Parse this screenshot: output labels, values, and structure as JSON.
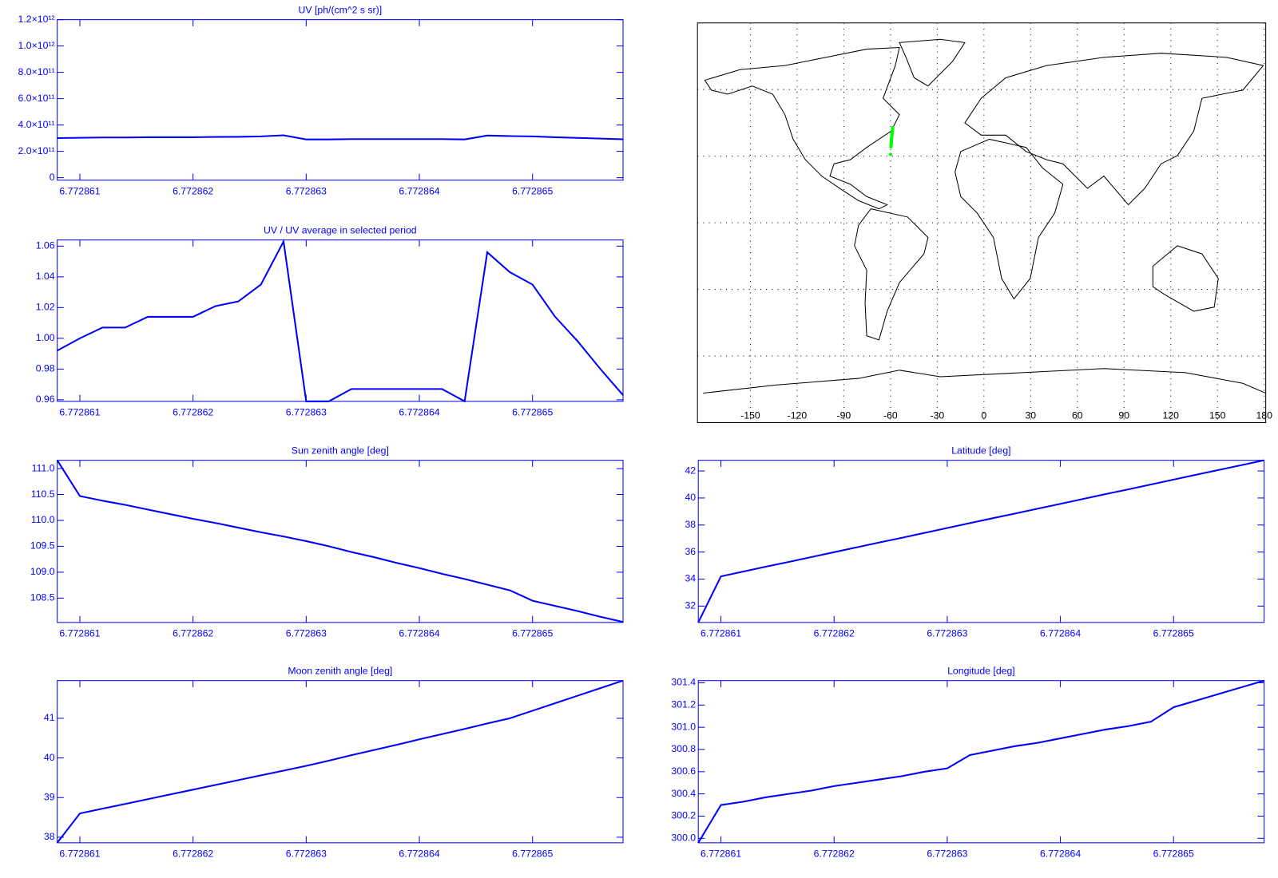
{
  "chart_data": [
    {
      "type": "line",
      "title": "UV [ph/(cm^2 s sr)]",
      "color": "#0000ff",
      "x": [
        6.7728608,
        6.772861,
        6.7728612,
        6.7728614,
        6.7728616,
        6.7728618,
        6.772862,
        6.7728622,
        6.7728624,
        6.7728626,
        6.7728628,
        6.772863,
        6.7728632,
        6.7728634,
        6.7728636,
        6.7728638,
        6.772864,
        6.7728642,
        6.7728644,
        6.7728646,
        6.7728648,
        6.772865,
        6.7728652,
        6.7728654,
        6.7728656,
        6.7728658
      ],
      "values": [
        300600000000.0,
        303000000000.0,
        305100000000.0,
        305100000000.0,
        307200000000.0,
        307200000000.0,
        307200000000.0,
        309400000000.0,
        310300000000.0,
        313600000000.0,
        322100000000.0,
        290600000000.0,
        290600000000.0,
        293000000000.0,
        293000000000.0,
        293000000000.0,
        293000000000.0,
        293000000000.0,
        290600000000.0,
        320000000000.0,
        316000000000.0,
        313600000000.0,
        307200000000.0,
        302400000000.0,
        296900000000.0,
        291800000000.0
      ],
      "xlim": [
        6.7728608,
        6.7728658
      ],
      "xticks": [
        6.772861,
        6.772862,
        6.772863,
        6.772864,
        6.772865
      ],
      "ylim": [
        -19000000000.0,
        1200000000000.0
      ],
      "yticks": [
        0,
        {
          "value": 200000000000.0,
          "label": "2.0×10¹¹"
        },
        {
          "value": 400000000000.0,
          "label": "4.0×10¹¹"
        },
        {
          "value": 600000000000.0,
          "label": "6.0×10¹¹"
        },
        {
          "value": 800000000000.0,
          "label": "8.0×10¹¹"
        },
        {
          "value": 1000000000000.0,
          "label": "1.0×10¹²"
        },
        {
          "value": 1200000000000.0,
          "label": "1.2×10¹²"
        }
      ]
    },
    {
      "type": "line",
      "title": "UV / UV average in selected period",
      "color": "#0000ff",
      "x": [
        6.7728608,
        6.772861,
        6.7728612,
        6.7728614,
        6.7728616,
        6.7728618,
        6.772862,
        6.7728622,
        6.7728624,
        6.7728626,
        6.7728628,
        6.772863,
        6.7728632,
        6.7728634,
        6.7728636,
        6.7728638,
        6.772864,
        6.7728642,
        6.7728644,
        6.7728646,
        6.7728648,
        6.772865,
        6.7728652,
        6.7728654,
        6.7728656,
        6.7728658
      ],
      "values": [
        0.992,
        1.0,
        1.007,
        1.007,
        1.014,
        1.014,
        1.014,
        1.021,
        1.024,
        1.035,
        1.063,
        0.959,
        0.959,
        0.967,
        0.967,
        0.967,
        0.967,
        0.967,
        0.959,
        1.056,
        1.043,
        1.035,
        1.014,
        0.998,
        0.98,
        0.963
      ],
      "xlim": [
        6.7728608,
        6.7728658
      ],
      "xticks": [
        6.772861,
        6.772862,
        6.772863,
        6.772864,
        6.772865
      ],
      "ylim": [
        0.959,
        1.064
      ],
      "yticks": [
        0.96,
        0.98,
        {
          "value": 1,
          "label": "1.00"
        },
        1.02,
        1.04,
        1.06
      ]
    },
    {
      "type": "map",
      "xlim": [
        -184,
        181
      ],
      "ylim": [
        -90,
        90
      ],
      "xticks": [
        -150,
        -120,
        -90,
        -60,
        -30,
        0,
        30,
        60,
        90,
        120,
        150,
        180
      ],
      "yticks": [
        -60,
        -30,
        0,
        30,
        60
      ],
      "grid": "dotted",
      "color": "#00ff00"
    },
    {
      "type": "line",
      "title": "Sun zenith angle [deg]",
      "color": "#0000ff",
      "x": [
        6.7728608,
        6.772861,
        6.7728612,
        6.7728614,
        6.7728616,
        6.7728618,
        6.772862,
        6.7728622,
        6.7728624,
        6.7728626,
        6.7728628,
        6.772863,
        6.7728632,
        6.7728634,
        6.7728636,
        6.7728638,
        6.772864,
        6.7728642,
        6.7728644,
        6.7728646,
        6.7728648,
        6.772865,
        6.7728652,
        6.7728654,
        6.7728656,
        6.7728658
      ],
      "values": [
        111.16,
        110.47,
        110.38,
        110.3,
        110.21,
        110.12,
        110.03,
        109.95,
        109.86,
        109.77,
        109.69,
        109.6,
        109.5,
        109.39,
        109.29,
        109.18,
        109.08,
        108.97,
        108.87,
        108.76,
        108.65,
        108.45,
        108.35,
        108.25,
        108.14,
        108.04
      ],
      "xlim": [
        6.7728608,
        6.7728658
      ],
      "xticks": [
        6.772861,
        6.772862,
        6.772863,
        6.772864,
        6.772865
      ],
      "ylim": [
        108.03,
        111.16
      ],
      "yticks": [
        108.5,
        {
          "value": 109,
          "label": "109.0"
        },
        109.5,
        {
          "value": 110,
          "label": "110.0"
        },
        110.5,
        {
          "value": 111,
          "label": "111.0"
        }
      ]
    },
    {
      "type": "line",
      "title": "Latitude [deg]",
      "color": "#0000ff",
      "x": [
        6.7728608,
        6.772861,
        6.7728612,
        6.7728614,
        6.7728616,
        6.7728618,
        6.772862,
        6.7728622,
        6.7728624,
        6.7728626,
        6.7728628,
        6.772863,
        6.7728632,
        6.7728634,
        6.7728636,
        6.7728638,
        6.772864,
        6.7728642,
        6.7728644,
        6.7728646,
        6.7728648,
        6.772865,
        6.7728652,
        6.7728654,
        6.7728656,
        6.7728658
      ],
      "values": [
        30.79,
        34.2,
        34.56,
        34.92,
        35.27,
        35.63,
        35.99,
        36.35,
        36.71,
        37.06,
        37.42,
        37.78,
        38.14,
        38.5,
        38.85,
        39.21,
        39.57,
        39.93,
        40.29,
        40.64,
        41.0,
        41.36,
        41.72,
        42.08,
        42.43,
        42.79
      ],
      "xlim": [
        6.7728608,
        6.7728658
      ],
      "xticks": [
        6.772861,
        6.772862,
        6.772863,
        6.772864,
        6.772865
      ],
      "ylim": [
        30.79,
        42.79
      ],
      "yticks": [
        32,
        34,
        36,
        38,
        40,
        42
      ]
    },
    {
      "type": "line",
      "title": "Moon zenith angle [deg]",
      "color": "#0000ff",
      "x": [
        6.7728608,
        6.772861,
        6.7728612,
        6.7728614,
        6.7728616,
        6.7728618,
        6.772862,
        6.7728622,
        6.7728624,
        6.7728626,
        6.7728628,
        6.772863,
        6.7728632,
        6.7728634,
        6.7728636,
        6.7728638,
        6.772864,
        6.7728642,
        6.7728644,
        6.7728646,
        6.7728648,
        6.772865,
        6.7728652,
        6.7728654,
        6.7728656,
        6.7728658
      ],
      "values": [
        37.86,
        38.6,
        38.72,
        38.84,
        38.96,
        39.08,
        39.2,
        39.32,
        39.44,
        39.56,
        39.68,
        39.8,
        39.93,
        40.07,
        40.2,
        40.33,
        40.47,
        40.6,
        40.73,
        40.87,
        41.0,
        41.19,
        41.38,
        41.57,
        41.76,
        41.95
      ],
      "xlim": [
        6.7728608,
        6.7728658
      ],
      "xticks": [
        6.772861,
        6.772862,
        6.772863,
        6.772864,
        6.772865
      ],
      "ylim": [
        37.86,
        41.95
      ],
      "yticks": [
        38,
        39,
        40,
        41
      ]
    },
    {
      "type": "line",
      "title": "Longitude [deg]",
      "color": "#0000ff",
      "x": [
        6.7728608,
        6.772861,
        6.7728612,
        6.7728614,
        6.7728616,
        6.7728618,
        6.772862,
        6.7728622,
        6.7728624,
        6.7728626,
        6.7728628,
        6.772863,
        6.7728632,
        6.7728634,
        6.7728636,
        6.7728638,
        6.772864,
        6.7728642,
        6.7728644,
        6.7728646,
        6.7728648,
        6.772865,
        6.7728652,
        6.7728654,
        6.7728656,
        6.7728658
      ],
      "values": [
        299.96,
        300.3,
        300.33,
        300.37,
        300.4,
        300.43,
        300.47,
        300.5,
        300.53,
        300.56,
        300.6,
        300.63,
        300.75,
        300.79,
        300.83,
        300.86,
        300.9,
        300.94,
        300.98,
        301.01,
        301.05,
        301.18,
        301.24,
        301.3,
        301.36,
        301.42
      ],
      "xlim": [
        6.7728608,
        6.7728658
      ],
      "xticks": [
        6.772861,
        6.772862,
        6.772863,
        6.772864,
        6.772865
      ],
      "ylim": [
        299.96,
        301.42
      ],
      "yticks": [
        {
          "value": 300,
          "label": "300.0"
        },
        300.2,
        300.4,
        300.6,
        300.8,
        {
          "value": 301,
          "label": "301.0"
        },
        301.2,
        301.4
      ]
    }
  ]
}
